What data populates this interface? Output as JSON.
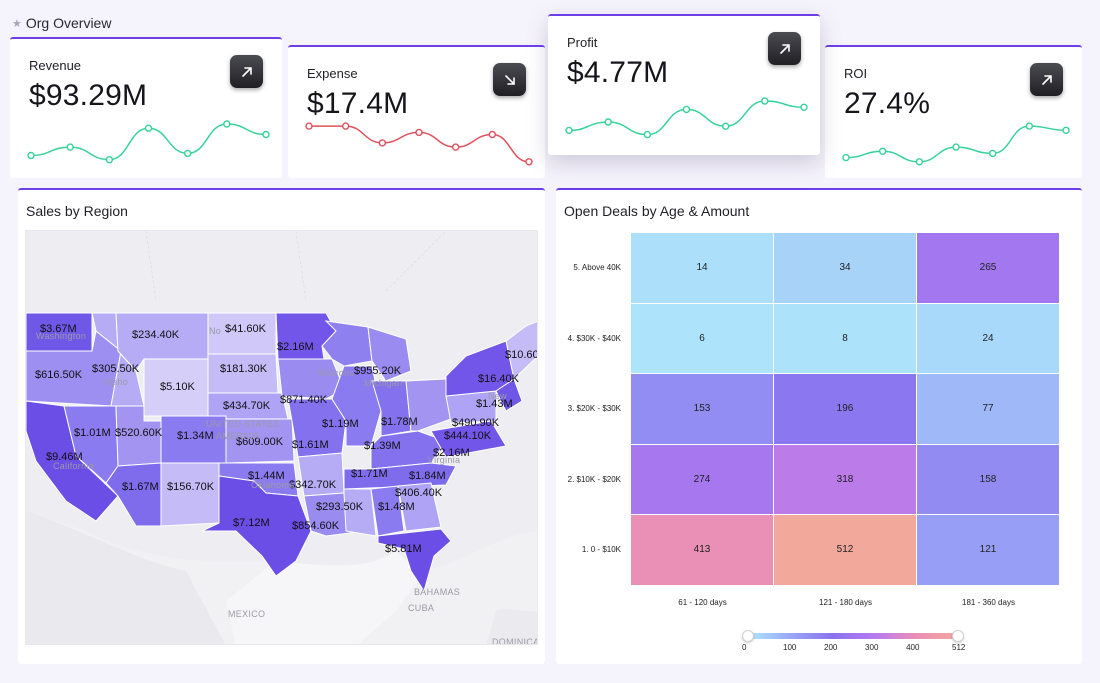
{
  "header": {
    "title": "Org Overview",
    "icon": "star-icon"
  },
  "kpis": [
    {
      "id": "revenue",
      "label": "Revenue",
      "value": "$93.29M",
      "trend": "up",
      "spark_color": "#36d39a",
      "spark": [
        0.25,
        0.45,
        0.15,
        0.9,
        0.3,
        1.0,
        0.75
      ]
    },
    {
      "id": "expense",
      "label": "Expense",
      "value": "$17.4M",
      "trend": "down",
      "spark_color": "#e0505c",
      "spark": [
        0.95,
        0.95,
        0.55,
        0.8,
        0.45,
        0.75,
        0.1
      ]
    },
    {
      "id": "profit",
      "label": "Profit",
      "value": "$4.77M",
      "trend": "up",
      "spark_color": "#36d39a",
      "spark": [
        0.3,
        0.5,
        0.2,
        0.8,
        0.4,
        1.0,
        0.85
      ]
    },
    {
      "id": "roi",
      "label": "ROI",
      "value": "27.4%",
      "trend": "up",
      "spark_color": "#36d39a",
      "spark": [
        0.2,
        0.35,
        0.1,
        0.45,
        0.3,
        0.95,
        0.85
      ]
    }
  ],
  "map_panel": {
    "title": "Sales by Region",
    "states": [
      {
        "state": "Washington",
        "value": "$3.67M",
        "color": "#6f57e8"
      },
      {
        "state": "Oregon",
        "value": "$616.50K",
        "color": "#9d8ff2"
      },
      {
        "state": "California",
        "value": "$9.46M",
        "color": "#6a4ee6"
      },
      {
        "state": "Idaho",
        "value": "$305.50K",
        "color": "#b6acf6"
      },
      {
        "state": "Montana",
        "value": "$234.40K",
        "color": "#b6acf6"
      },
      {
        "state": "Nevada",
        "value": "$1.01M",
        "color": "#8b7bf0"
      },
      {
        "state": "Utah",
        "value": "$520.60K",
        "color": "#a394f2"
      },
      {
        "state": "Arizona",
        "value": "$1.67M",
        "color": "#7f6cec"
      },
      {
        "state": "Wyoming",
        "value": "$5.10K",
        "color": "#d4cef9"
      },
      {
        "state": "Colorado",
        "value": "$1.34M",
        "color": "#8b7bf0"
      },
      {
        "state": "New Mexico",
        "value": "$156.70K",
        "color": "#c4bbf7"
      },
      {
        "state": "North Dakota",
        "value": "$41.60K",
        "color": "#cfc8f9"
      },
      {
        "state": "South Dakota",
        "value": "$181.30K",
        "color": "#c4bbf7"
      },
      {
        "state": "Nebraska",
        "value": "$434.70K",
        "color": "#aea3f4"
      },
      {
        "state": "Kansas",
        "value": "$609.00K",
        "color": "#a394f2"
      },
      {
        "state": "Oklahoma",
        "value": "$1.44M",
        "color": "#8b7bf0"
      },
      {
        "state": "Texas",
        "value": "$7.12M",
        "color": "#6a4ee6"
      },
      {
        "state": "Minnesota",
        "value": "$2.16M",
        "color": "#7256ea"
      },
      {
        "state": "Iowa",
        "value": "$871.40K",
        "color": "#9a8bf1"
      },
      {
        "state": "Missouri",
        "value": "$1.61M",
        "color": "#8471ee"
      },
      {
        "state": "Arkansas",
        "value": "$342.70K",
        "color": "#b6acf6"
      },
      {
        "state": "Louisiana",
        "value": "$854.60K",
        "color": "#9a8bf1"
      },
      {
        "state": "Wisconsin",
        "value": "$1.19M",
        "color": "#8f80f0"
      },
      {
        "state": "Illinois",
        "value": "$1.39M",
        "color": "#8b7bf0"
      },
      {
        "state": "Michigan",
        "value": "$955.20K",
        "color": "#9a8bf1"
      },
      {
        "state": "Indiana",
        "value": "$1.78M",
        "color": "#8471ee"
      },
      {
        "state": "Ohio",
        "value": "$490.90K",
        "color": "#a394f2"
      },
      {
        "state": "Kentucky",
        "value": "$1.71M",
        "color": "#8471ee"
      },
      {
        "state": "Tennessee",
        "value": "$1.84M",
        "color": "#7f6cec"
      },
      {
        "state": "Mississippi",
        "value": "$293.50K",
        "color": "#b6acf6"
      },
      {
        "state": "Alabama",
        "value": "$1.48M",
        "color": "#8b7bf0"
      },
      {
        "state": "Georgia",
        "value": "$406.40K",
        "color": "#aea3f4"
      },
      {
        "state": "Florida",
        "value": "$5.81M",
        "color": "#6a4ee6"
      },
      {
        "state": "Pennsylvania",
        "value": "$444.10K",
        "color": "#aea3f4"
      },
      {
        "state": "Virginia",
        "value": "$2.16M",
        "color": "#7256ea"
      },
      {
        "state": "New York",
        "value": "$16.40K",
        "color": "#7256ea"
      },
      {
        "state": "New Jersey",
        "value": "$1.43M",
        "color": "#6f57e8"
      },
      {
        "state": "Maine",
        "value": "$10.60",
        "color": "#c4bbf7"
      }
    ],
    "basemap_labels": [
      "Washington",
      "Idaho",
      "California",
      "No",
      "Wiscons",
      "Michigan",
      "UNITED STATES",
      "AMERICA",
      "Oklahoma",
      "New",
      "Virginia",
      "BAHAMAS",
      "MEXICO",
      "CUBA",
      "DOMINICAN"
    ]
  },
  "heatmap_panel": {
    "title": "Open Deals by Age & Amount",
    "chart_data": {
      "type": "heatmap",
      "title": "Open Deals by Age & Amount",
      "x_categories": [
        "61 - 120 days",
        "121 - 180 days",
        "181 - 360 days"
      ],
      "y_categories": [
        "5. Above 40K",
        "4. $30K - $40K",
        "3. $20K - $30K",
        "2. $10K - $20K",
        "1. 0 - $10K"
      ],
      "values": [
        [
          14,
          34,
          265
        ],
        [
          6,
          8,
          24
        ],
        [
          153,
          196,
          77
        ],
        [
          274,
          318,
          158
        ],
        [
          413,
          512,
          121
        ]
      ],
      "color_scale": {
        "min": 0,
        "max": 512,
        "stops": [
          "#aee8fb",
          "#9aa8f6",
          "#8a72ef",
          "#b57af0",
          "#ea8fb7",
          "#f3a89c"
        ],
        "ticks": [
          0,
          100,
          200,
          300,
          400,
          512
        ]
      }
    }
  }
}
